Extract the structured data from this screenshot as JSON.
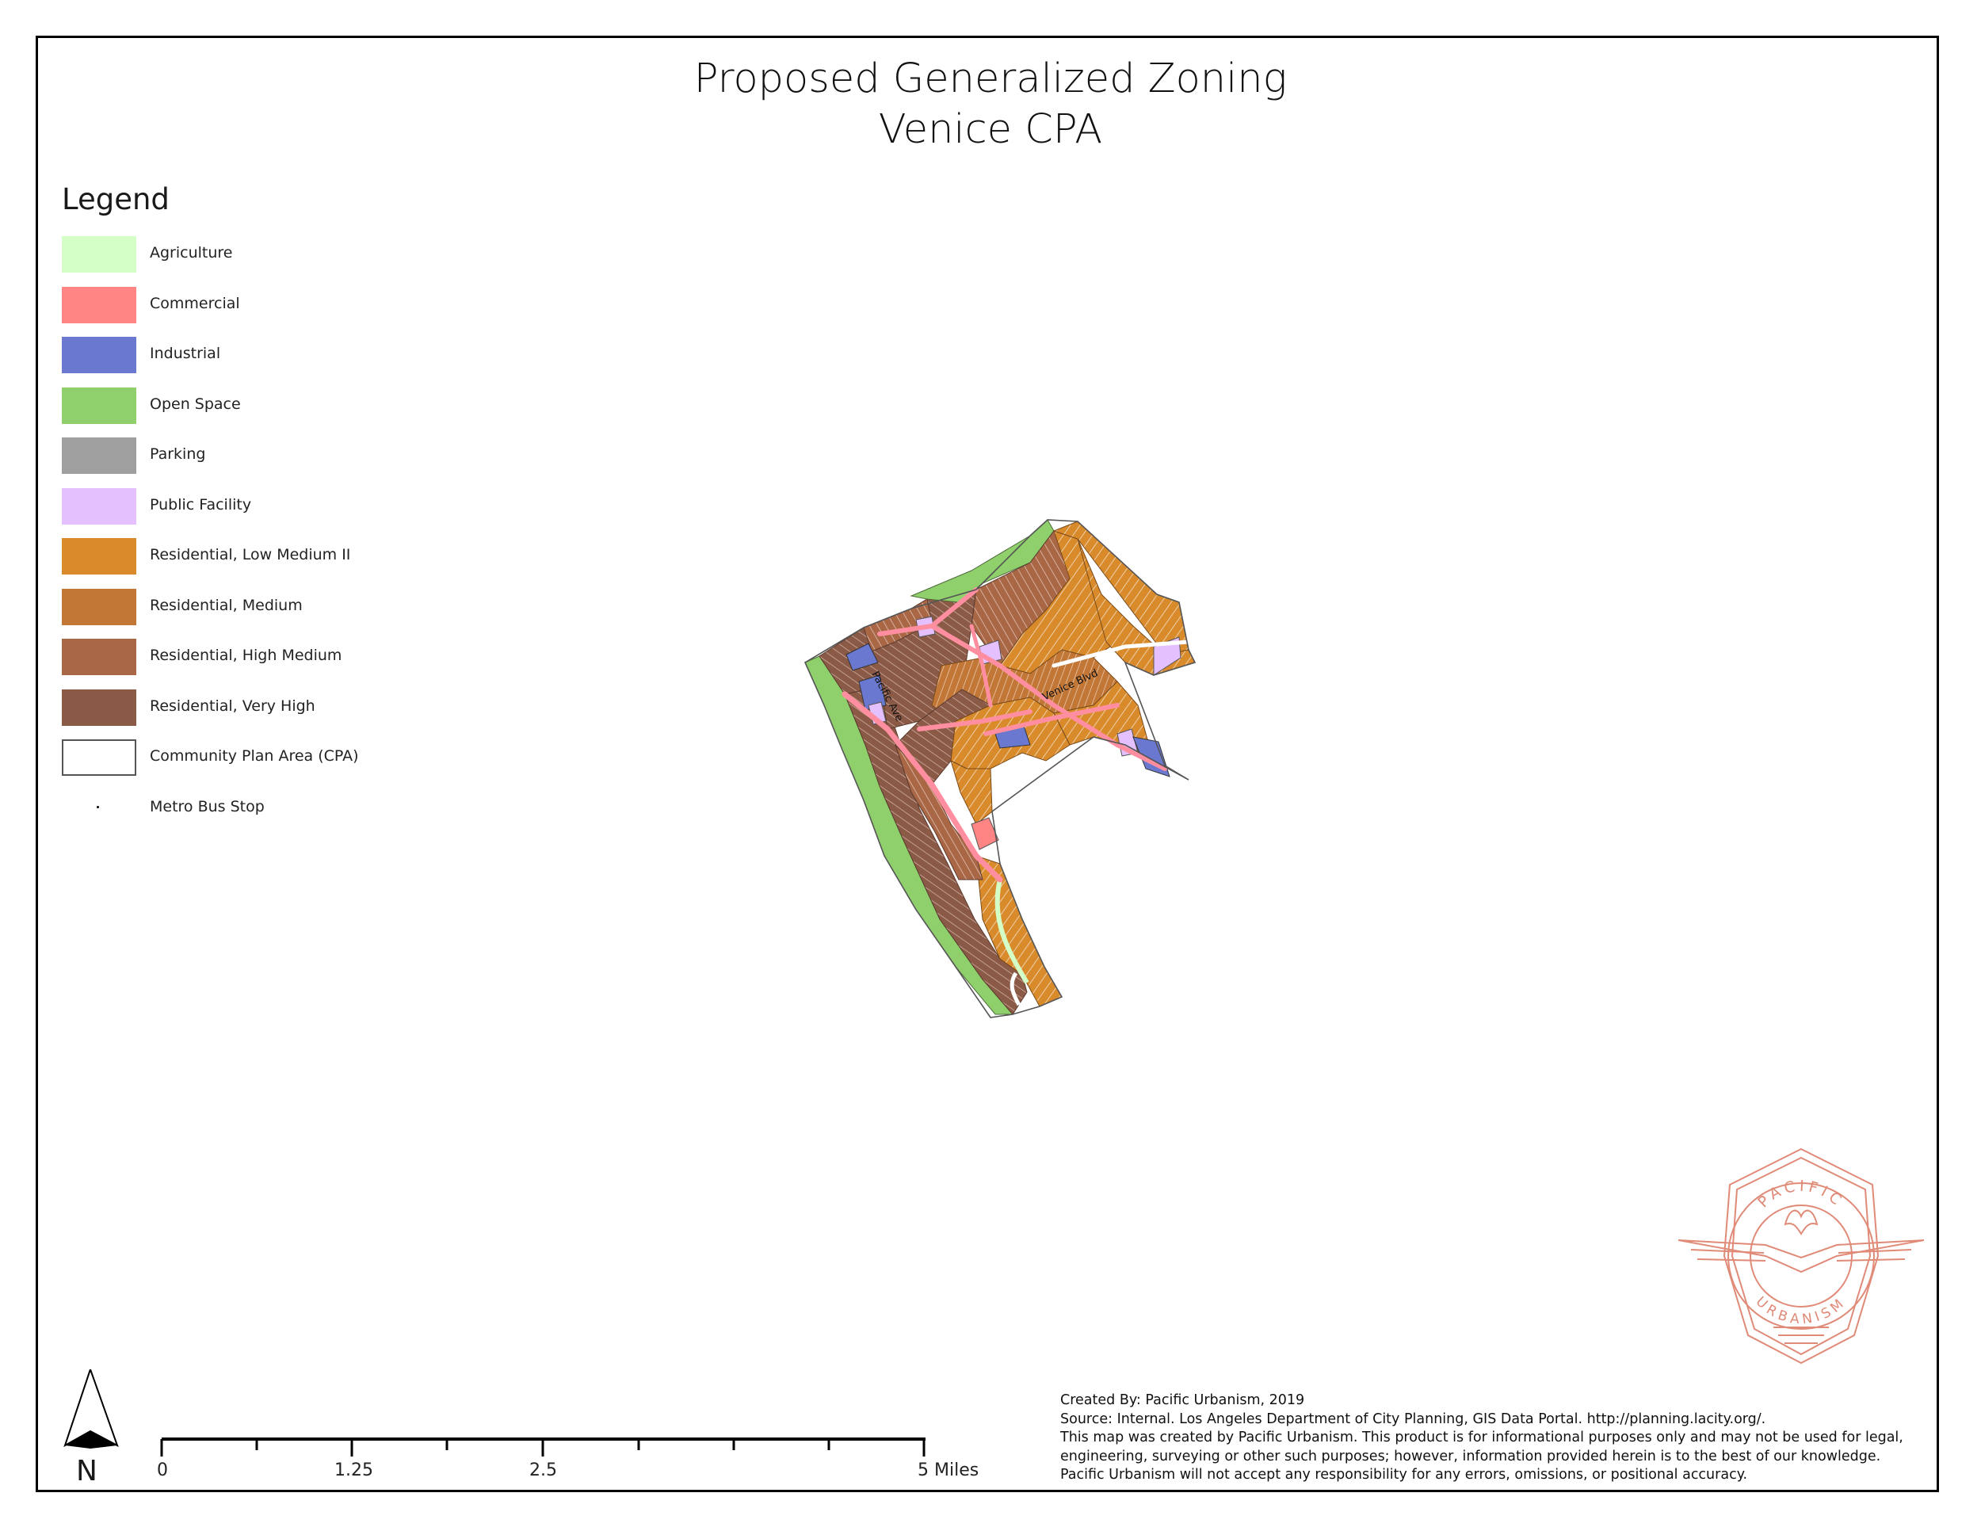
{
  "title": {
    "line1": "Proposed Generalized Zoning",
    "line2": "Venice CPA"
  },
  "legend": {
    "title": "Legend",
    "items": [
      {
        "label": "Agriculture",
        "color": "#d4ffc6"
      },
      {
        "label": "Commercial",
        "color": "#ff8484"
      },
      {
        "label": "Industrial",
        "color": "#6a78cf"
      },
      {
        "label": "Open Space",
        "color": "#8fcf6c"
      },
      {
        "label": "Parking",
        "color": "#9f9f9f"
      },
      {
        "label": "Public Facility",
        "color": "#e4c0ff"
      },
      {
        "label": "Residential, Low Medium II",
        "color": "#d98b2b"
      },
      {
        "label": "Residential, Medium",
        "color": "#c37737"
      },
      {
        "label": "Residential, High Medium",
        "color": "#a96746"
      },
      {
        "label": "Residential, Very High",
        "color": "#8b5a47"
      },
      {
        "label": "Community Plan Area (CPA)",
        "color": "#ffffff"
      },
      {
        "label": "Metro Bus Stop",
        "color": "#000000"
      }
    ]
  },
  "map": {
    "street_labels": [
      "Pacific Ave",
      "Venice Blvd"
    ]
  },
  "north_arrow": {
    "label": "N",
    "icon": "north-arrow-icon"
  },
  "scale_bar": {
    "labels": [
      "0",
      "1.25",
      "2.5",
      "5 Miles"
    ]
  },
  "credits": {
    "lines": [
      "Created By: Pacific Urbanism, 2019",
      "Source: Internal. Los Angeles Department of City Planning, GIS Data Portal. http://planning.lacity.org/.",
      "This map was created by Pacific Urbanism. This product is for informational purposes only and may not be used for legal,",
      "engineering, surveying or other such purposes; however, information provided herein is to the best of our knowledge.",
      "Pacific Urbanism will not accept any responsibility for any errors, omissions, or positional accuracy."
    ]
  },
  "logo": {
    "top_text": "PACIFIC",
    "bottom_text": "URBANISM",
    "color": "#e08a78"
  }
}
